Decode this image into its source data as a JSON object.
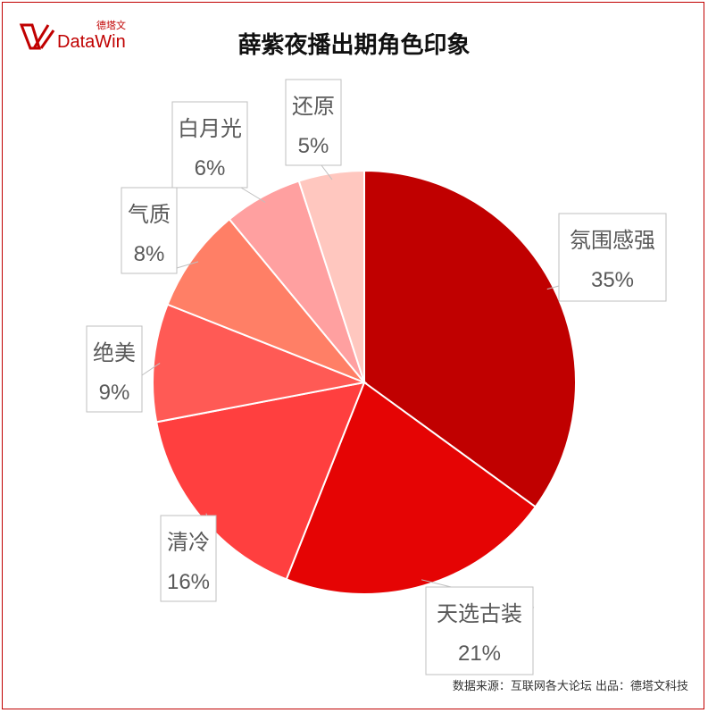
{
  "logo": {
    "cn": "德塔文",
    "en": "DataWin"
  },
  "title": "薛紫夜播出期角色印象",
  "source": "数据来源：互联网各大论坛   出品：德塔文科技",
  "chart_data": {
    "type": "pie",
    "title": "薛紫夜播出期角色印象",
    "start_angle_deg": 0,
    "direction": "clockwise",
    "slices": [
      {
        "label": "氛围感强",
        "value": 35,
        "value_label": "35%",
        "color": "#c00000"
      },
      {
        "label": "天选古装",
        "value": 21,
        "value_label": "21%",
        "color": "#e50404"
      },
      {
        "label": "清冷",
        "value": 16,
        "value_label": "16%",
        "color": "#ff3f3f"
      },
      {
        "label": "绝美",
        "value": 9,
        "value_label": "9%",
        "color": "#ff5a55"
      },
      {
        "label": "气质",
        "value": 8,
        "value_label": "8%",
        "color": "#ff7f66"
      },
      {
        "label": "白月光",
        "value": 6,
        "value_label": "6%",
        "color": "#ffa0a0"
      },
      {
        "label": "还原",
        "value": 5,
        "value_label": "5%",
        "color": "#ffc7bf"
      }
    ]
  }
}
